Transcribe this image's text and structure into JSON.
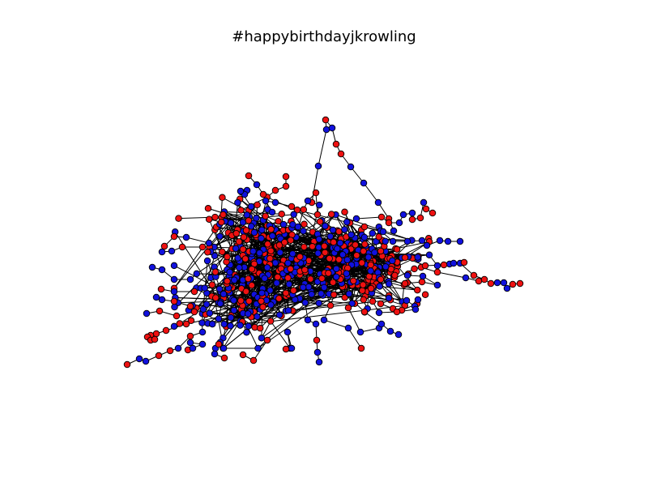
{
  "title": "#happybirthdayjkrowling",
  "colors": {
    "node_red": "#ee1111",
    "node_blue": "#1111dd",
    "edge": "#000000",
    "node_outline": "#000000",
    "background": "#ffffff"
  }
}
